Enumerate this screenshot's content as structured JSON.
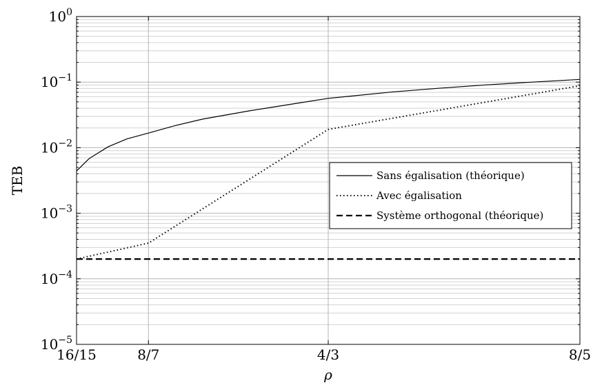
{
  "chart_data": {
    "type": "line",
    "xlabel": "ρ",
    "ylabel": "TEB",
    "y_scale": "log",
    "ylim": [
      1e-05,
      1
    ],
    "xlim": [
      1.0666667,
      1.6
    ],
    "x_ticks": [
      {
        "value": 1.0666667,
        "label": "16/15"
      },
      {
        "value": 1.1428571,
        "label": "8/7"
      },
      {
        "value": 1.3333333,
        "label": "4/3"
      },
      {
        "value": 1.6,
        "label": "8/5"
      }
    ],
    "y_ticks": [
      {
        "value": 1e-05,
        "base": "10",
        "exp": "−5"
      },
      {
        "value": 0.0001,
        "base": "10",
        "exp": "−4"
      },
      {
        "value": 0.001,
        "base": "10",
        "exp": "−3"
      },
      {
        "value": 0.01,
        "base": "10",
        "exp": "−2"
      },
      {
        "value": 0.1,
        "base": "10",
        "exp": "−1"
      },
      {
        "value": 1,
        "base": "10",
        "exp": "0"
      }
    ],
    "grid": true,
    "legend_position": "center-right",
    "series": [
      {
        "name": "Sans égalisation (théorique)",
        "style": "solid",
        "x": [
          1.0666667,
          1.08,
          1.1,
          1.12,
          1.1428571,
          1.17,
          1.2,
          1.25,
          1.3,
          1.3333333,
          1.4,
          1.45,
          1.5,
          1.55,
          1.6
        ],
        "y": [
          0.0044,
          0.0068,
          0.0103,
          0.0136,
          0.0167,
          0.0215,
          0.0272,
          0.0365,
          0.0475,
          0.0565,
          0.0705,
          0.0805,
          0.0905,
          0.1,
          0.11
        ]
      },
      {
        "name": "Avec égalisation",
        "style": "dotted",
        "x": [
          1.0666667,
          1.1428571,
          1.3333333,
          1.6
        ],
        "y": [
          0.0002,
          0.00035,
          0.019,
          0.088
        ]
      },
      {
        "name": "Système orthogonal (théorique)",
        "style": "dashed",
        "x": [
          1.0666667,
          1.6
        ],
        "y": [
          0.0002,
          0.0002
        ]
      }
    ]
  }
}
